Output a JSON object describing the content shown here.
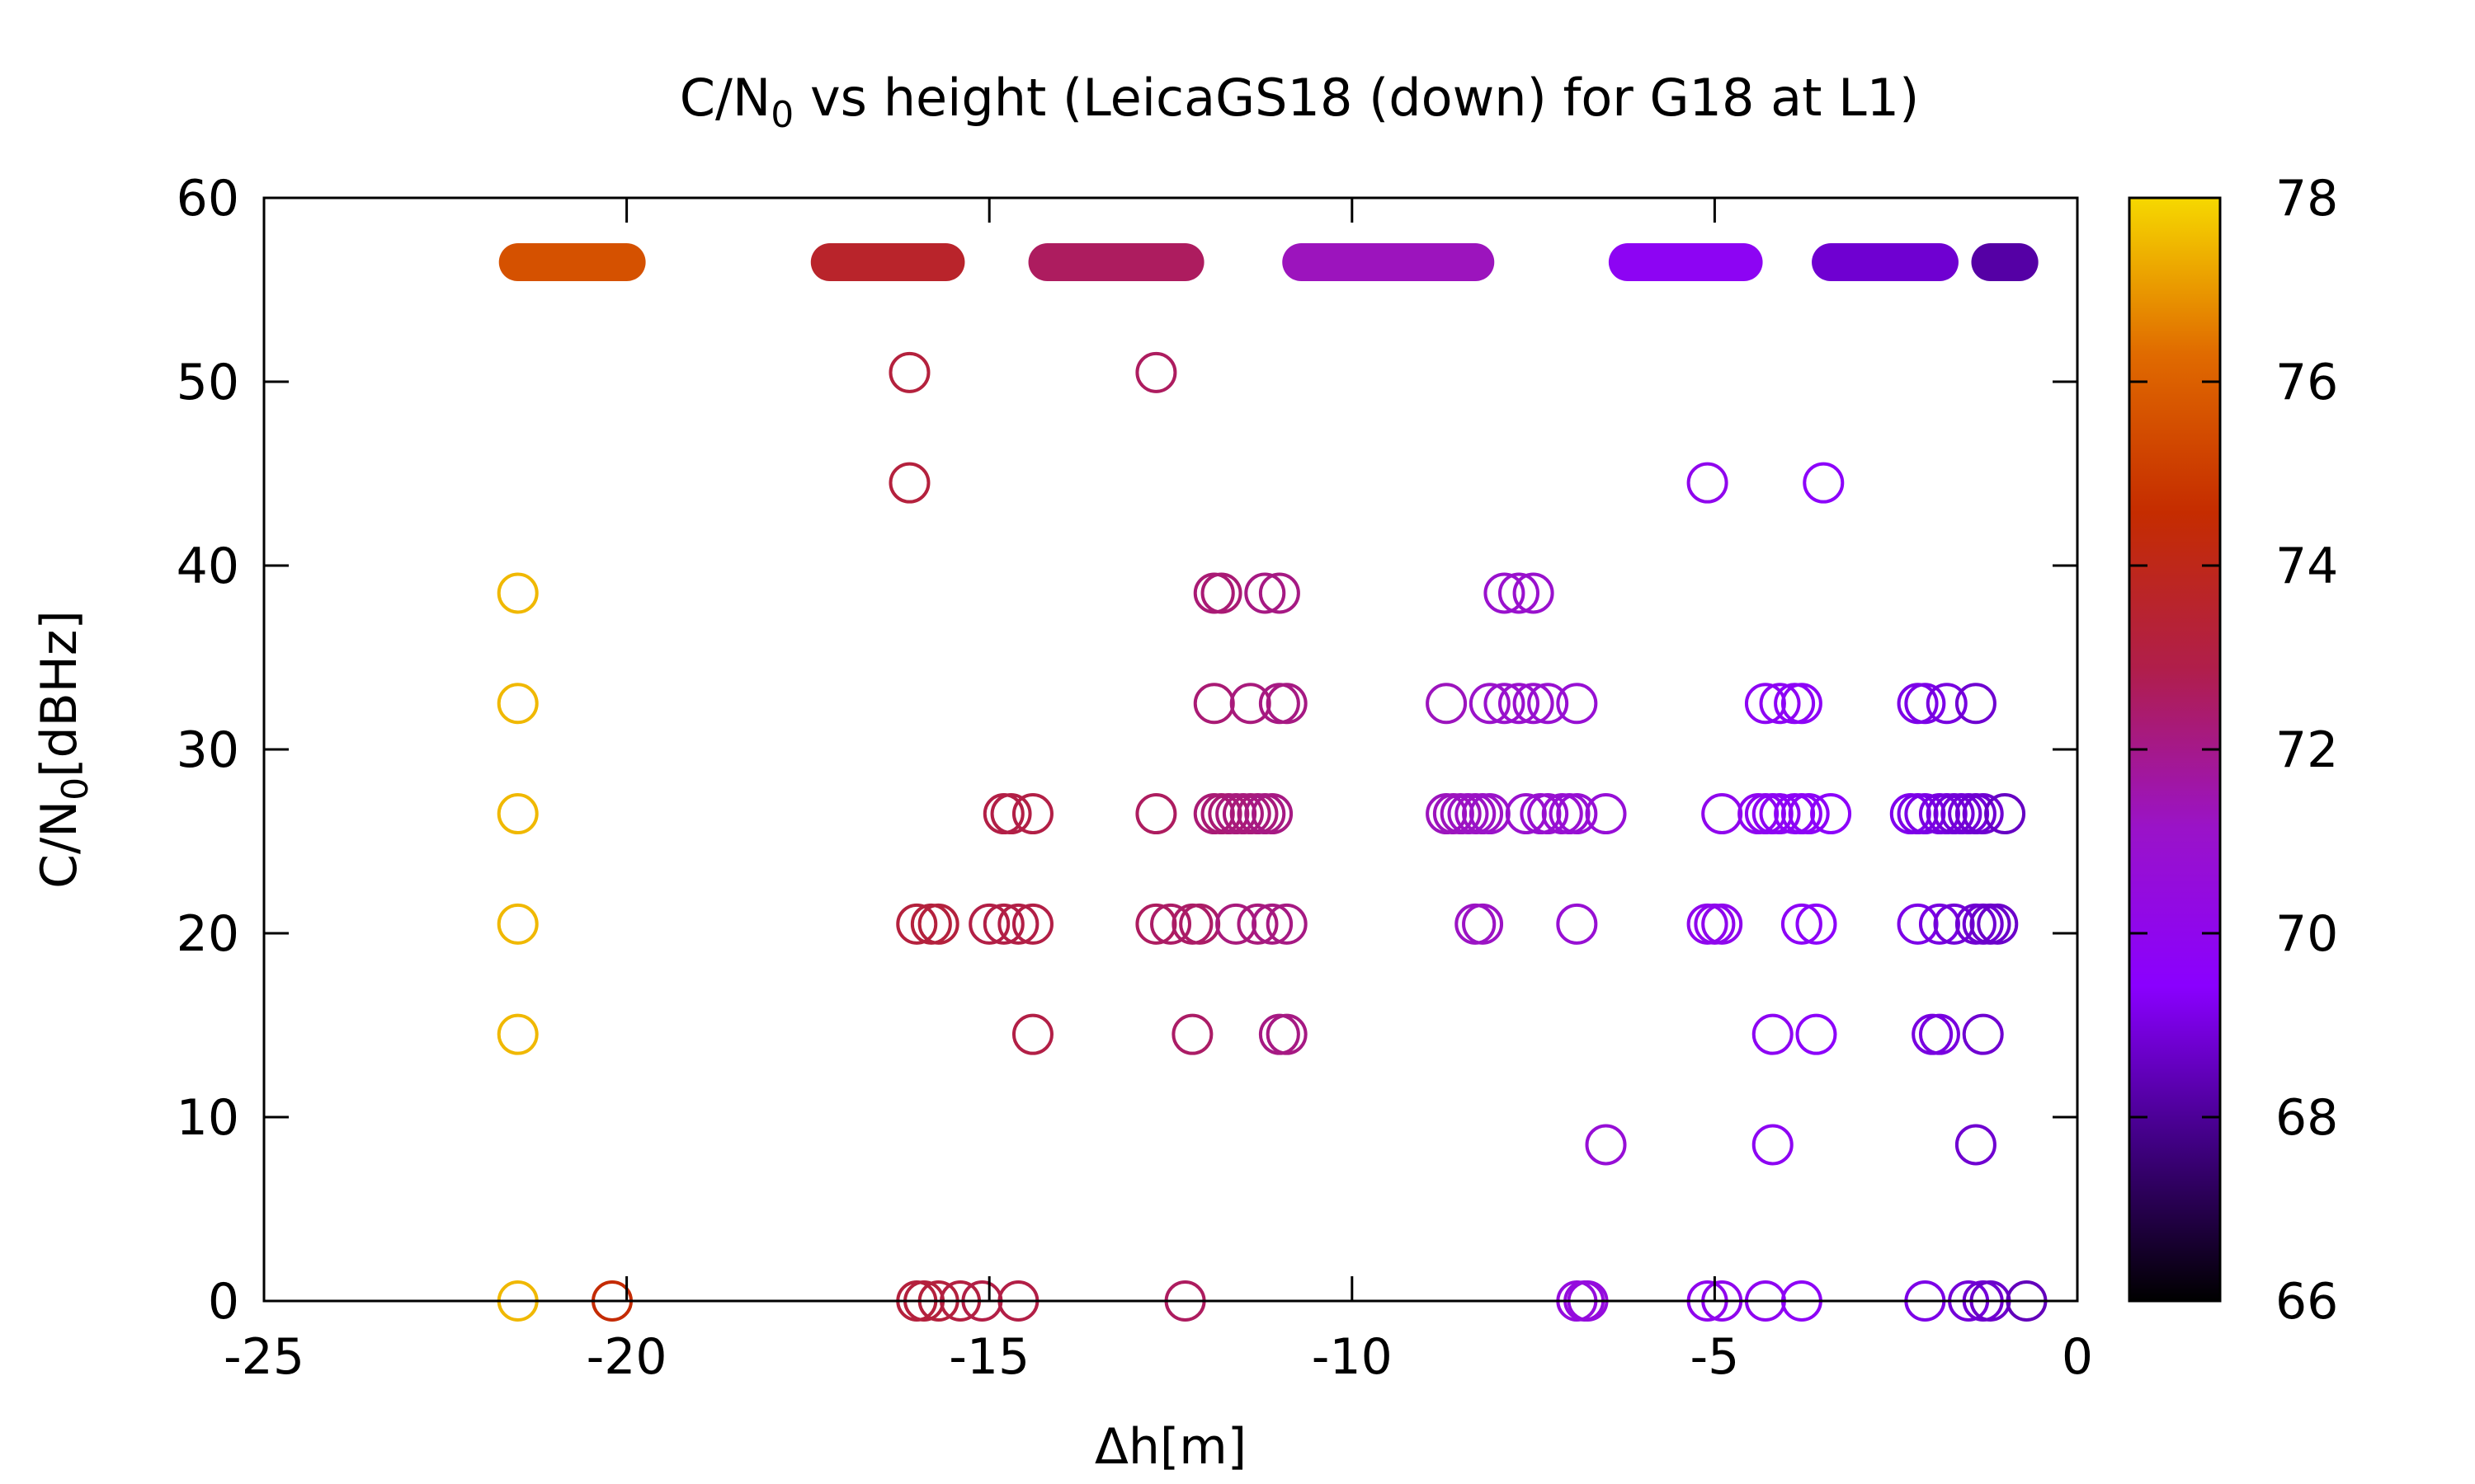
{
  "chart_data": {
    "type": "scatter",
    "title_main": "C/N",
    "title_sub": "0",
    "title_rest": " vs height (LeicaGS18 (down) for G18 at L1)",
    "xlabel": "Δh[m]",
    "ylabel_main": "C/N",
    "ylabel_sub": "0",
    "ylabel_rest": "[dBHz]",
    "xlim": [
      -25,
      0
    ],
    "ylim": [
      0,
      60
    ],
    "xticks": [
      -25,
      -20,
      -15,
      -10,
      -5,
      0
    ],
    "yticks": [
      0,
      10,
      20,
      30,
      40,
      50,
      60
    ],
    "colorbar": {
      "range": [
        66,
        78
      ],
      "ticks": [
        66,
        68,
        70,
        72,
        74,
        76,
        78
      ]
    },
    "palette": [
      "#000000",
      "#400082",
      "#8a00ff",
      "#9a13c8",
      "#b01e4c",
      "#c52c00",
      "#e06a00",
      "#f6d800"
    ],
    "grid": false,
    "band_y": 56.5,
    "bands": [
      {
        "x_start": -21.5,
        "x_end": -20.0,
        "value": 75.6
      },
      {
        "x_start": -17.2,
        "x_end": -15.6,
        "value": 73.6
      },
      {
        "x_start": -14.2,
        "x_end": -12.3,
        "value": 72.6
      },
      {
        "x_start": -10.7,
        "x_end": -8.3,
        "value": 71.3
      },
      {
        "x_start": -6.2,
        "x_end": -4.6,
        "value": 69.8
      },
      {
        "x_start": -3.4,
        "x_end": -1.9,
        "value": 68.8
      },
      {
        "x_start": -1.2,
        "x_end": -0.8,
        "value": 68.2
      }
    ],
    "points": [
      [
        -21.5,
        38.5,
        77.5
      ],
      [
        -21.5,
        32.5,
        77.5
      ],
      [
        -21.5,
        26.5,
        77.5
      ],
      [
        -21.5,
        20.5,
        77.5
      ],
      [
        -21.5,
        14.5,
        77.5
      ],
      [
        -21.5,
        0,
        77.5
      ],
      [
        -20.2,
        0,
        74.5
      ],
      [
        -16.1,
        50.5,
        73.2
      ],
      [
        -16.1,
        44.5,
        73.2
      ],
      [
        -12.7,
        50.5,
        72.6
      ],
      [
        -16.0,
        20.5,
        73.2
      ],
      [
        -15.8,
        20.5,
        73.2
      ],
      [
        -15.7,
        20.5,
        73.2
      ],
      [
        -15.0,
        20.5,
        73.0
      ],
      [
        -14.8,
        20.5,
        73.0
      ],
      [
        -14.6,
        20.5,
        73.0
      ],
      [
        -14.4,
        20.5,
        73.0
      ],
      [
        -14.8,
        26.5,
        73.0
      ],
      [
        -14.7,
        26.5,
        73.0
      ],
      [
        -14.4,
        26.5,
        73.0
      ],
      [
        -14.4,
        14.5,
        73.0
      ],
      [
        -16.0,
        0,
        73.2
      ],
      [
        -15.9,
        0,
        73.2
      ],
      [
        -15.7,
        0,
        73.2
      ],
      [
        -15.4,
        0,
        73.1
      ],
      [
        -15.1,
        0,
        73.0
      ],
      [
        -14.6,
        0,
        73.0
      ],
      [
        -12.3,
        0,
        72.6
      ],
      [
        -12.7,
        26.5,
        72.6
      ],
      [
        -12.7,
        20.5,
        72.6
      ],
      [
        -12.5,
        20.5,
        72.5
      ],
      [
        -12.2,
        20.5,
        72.5
      ],
      [
        -12.1,
        20.5,
        72.5
      ],
      [
        -12.2,
        14.5,
        72.5
      ],
      [
        -11.9,
        38.5,
        72.3
      ],
      [
        -11.8,
        38.5,
        72.3
      ],
      [
        -11.2,
        38.5,
        72.1
      ],
      [
        -11.0,
        38.5,
        72.1
      ],
      [
        -11.9,
        32.5,
        72.3
      ],
      [
        -11.4,
        32.5,
        72.2
      ],
      [
        -11.0,
        32.5,
        72.1
      ],
      [
        -10.9,
        32.5,
        72.1
      ],
      [
        -11.9,
        26.5,
        72.3
      ],
      [
        -11.8,
        26.5,
        72.3
      ],
      [
        -11.7,
        26.5,
        72.3
      ],
      [
        -11.6,
        26.5,
        72.2
      ],
      [
        -11.5,
        26.5,
        72.2
      ],
      [
        -11.4,
        26.5,
        72.2
      ],
      [
        -11.3,
        26.5,
        72.2
      ],
      [
        -11.2,
        26.5,
        72.1
      ],
      [
        -11.1,
        26.5,
        72.1
      ],
      [
        -11.6,
        20.5,
        72.2
      ],
      [
        -11.3,
        20.5,
        72.2
      ],
      [
        -11.1,
        20.5,
        72.1
      ],
      [
        -10.9,
        20.5,
        72.1
      ],
      [
        -11.0,
        14.5,
        72.1
      ],
      [
        -10.9,
        14.5,
        72.1
      ],
      [
        -7.9,
        38.5,
        71.0
      ],
      [
        -7.7,
        38.5,
        71.0
      ],
      [
        -7.5,
        38.5,
        71.0
      ],
      [
        -8.7,
        32.5,
        71.3
      ],
      [
        -8.1,
        32.5,
        71.1
      ],
      [
        -7.9,
        32.5,
        71.0
      ],
      [
        -7.7,
        32.5,
        71.0
      ],
      [
        -7.5,
        32.5,
        71.0
      ],
      [
        -7.3,
        32.5,
        70.9
      ],
      [
        -6.9,
        32.5,
        70.8
      ],
      [
        -8.7,
        26.5,
        71.3
      ],
      [
        -8.6,
        26.5,
        71.3
      ],
      [
        -8.5,
        26.5,
        71.3
      ],
      [
        -8.4,
        26.5,
        71.2
      ],
      [
        -8.3,
        26.5,
        71.2
      ],
      [
        -8.2,
        26.5,
        71.2
      ],
      [
        -8.1,
        26.5,
        71.1
      ],
      [
        -7.6,
        26.5,
        71.0
      ],
      [
        -7.4,
        26.5,
        70.9
      ],
      [
        -7.3,
        26.5,
        70.9
      ],
      [
        -7.1,
        26.5,
        70.9
      ],
      [
        -7.0,
        26.5,
        70.8
      ],
      [
        -6.9,
        26.5,
        70.8
      ],
      [
        -6.5,
        26.5,
        70.7
      ],
      [
        -8.3,
        20.5,
        71.2
      ],
      [
        -8.2,
        20.5,
        71.2
      ],
      [
        -6.9,
        20.5,
        70.8
      ],
      [
        -6.5,
        8.5,
        70.7
      ],
      [
        -6.9,
        0,
        70.5
      ],
      [
        -6.8,
        0,
        70.5
      ],
      [
        -6.75,
        0,
        70.5
      ],
      [
        -5.1,
        44.5,
        70.0
      ],
      [
        -3.5,
        44.5,
        69.6
      ],
      [
        -4.3,
        32.5,
        69.8
      ],
      [
        -4.1,
        32.5,
        69.8
      ],
      [
        -3.9,
        32.5,
        69.7
      ],
      [
        -3.8,
        32.5,
        69.7
      ],
      [
        -4.9,
        26.5,
        70.0
      ],
      [
        -4.4,
        26.5,
        69.9
      ],
      [
        -4.3,
        26.5,
        69.9
      ],
      [
        -4.2,
        26.5,
        69.8
      ],
      [
        -4.1,
        26.5,
        69.8
      ],
      [
        -3.9,
        26.5,
        69.7
      ],
      [
        -3.8,
        26.5,
        69.7
      ],
      [
        -3.7,
        26.5,
        69.7
      ],
      [
        -3.4,
        26.5,
        69.6
      ],
      [
        -5.1,
        20.5,
        70.0
      ],
      [
        -5.0,
        20.5,
        70.0
      ],
      [
        -4.9,
        20.5,
        70.0
      ],
      [
        -3.8,
        20.5,
        69.7
      ],
      [
        -3.6,
        20.5,
        69.6
      ],
      [
        -4.2,
        14.5,
        69.8
      ],
      [
        -3.6,
        14.5,
        69.6
      ],
      [
        -4.2,
        8.5,
        69.8
      ],
      [
        -5.1,
        0,
        70.0
      ],
      [
        -4.9,
        0,
        70.0
      ],
      [
        -4.3,
        0,
        69.9
      ],
      [
        -3.8,
        0,
        69.7
      ],
      [
        -2.2,
        32.5,
        69.1
      ],
      [
        -2.1,
        32.5,
        69.1
      ],
      [
        -1.8,
        32.5,
        69.0
      ],
      [
        -1.4,
        32.5,
        68.8
      ],
      [
        -2.3,
        26.5,
        69.2
      ],
      [
        -2.2,
        26.5,
        69.1
      ],
      [
        -2.1,
        26.5,
        69.1
      ],
      [
        -1.9,
        26.5,
        69.0
      ],
      [
        -1.8,
        26.5,
        69.0
      ],
      [
        -1.7,
        26.5,
        68.9
      ],
      [
        -1.6,
        26.5,
        68.9
      ],
      [
        -1.5,
        26.5,
        68.9
      ],
      [
        -1.4,
        26.5,
        68.8
      ],
      [
        -1.3,
        26.5,
        68.8
      ],
      [
        -1.0,
        26.5,
        68.6
      ],
      [
        -2.2,
        20.5,
        69.1
      ],
      [
        -1.9,
        20.5,
        69.0
      ],
      [
        -1.7,
        20.5,
        68.9
      ],
      [
        -1.4,
        20.5,
        68.8
      ],
      [
        -1.3,
        20.5,
        68.8
      ],
      [
        -1.2,
        20.5,
        68.7
      ],
      [
        -1.1,
        20.5,
        68.7
      ],
      [
        -2.0,
        14.5,
        69.0
      ],
      [
        -1.9,
        14.5,
        69.0
      ],
      [
        -1.3,
        14.5,
        68.8
      ],
      [
        -1.4,
        8.5,
        68.8
      ],
      [
        -2.1,
        0,
        69.1
      ],
      [
        -1.5,
        0,
        68.9
      ],
      [
        -1.3,
        0,
        68.8
      ],
      [
        -1.2,
        0,
        68.7
      ],
      [
        -0.7,
        0,
        68.5
      ]
    ]
  }
}
